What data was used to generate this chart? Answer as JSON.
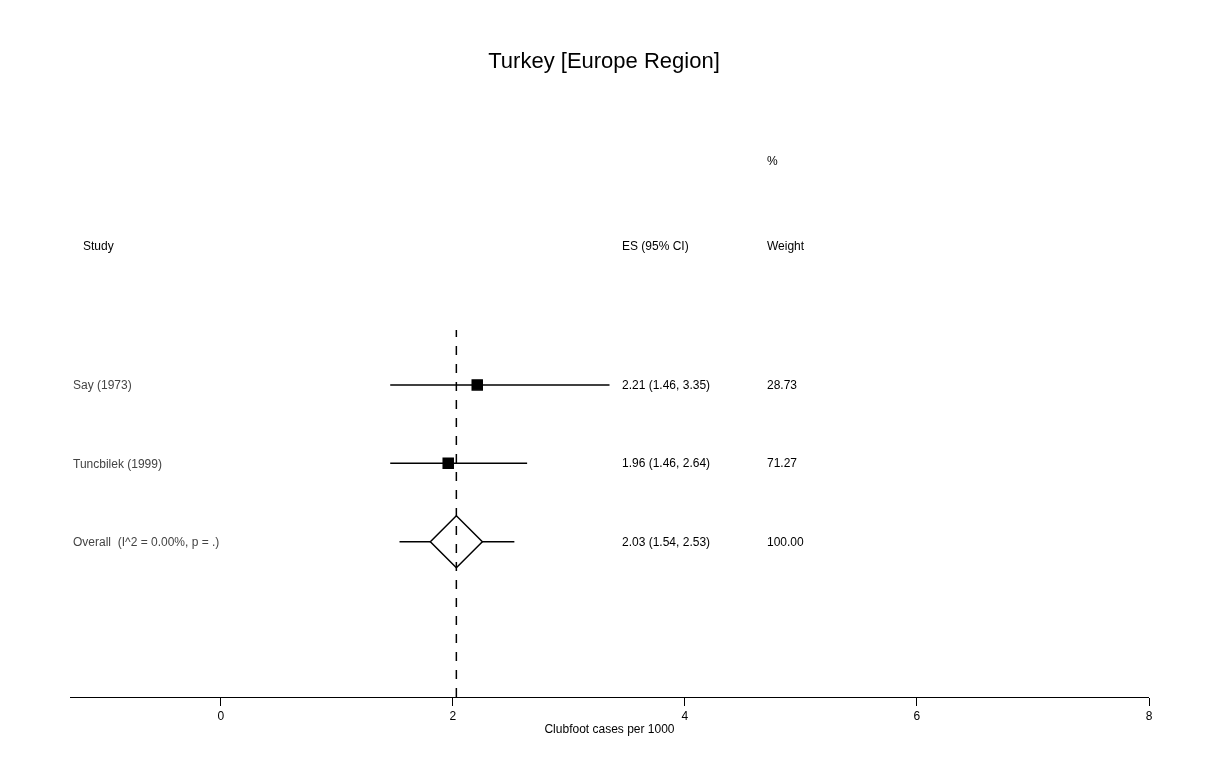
{
  "chart_data": {
    "type": "scatter",
    "title": "Turkey [Europe Region]",
    "xlabel": "Clubfoot cases per 1000",
    "categories": [
      "Say (1973)",
      "Tuncbilek (1999)",
      "Overall  (I^2 = 0.00%, p = .)"
    ],
    "series": [
      {
        "marker": "square",
        "color": "#000000",
        "values": [
          2.21,
          1.96,
          null
        ],
        "errors": [
          [
            1.46,
            3.35
          ],
          [
            1.46,
            2.64
          ],
          null
        ]
      },
      {
        "marker": "diamond",
        "color": "#000000",
        "values": [
          null,
          null,
          2.03
        ],
        "errors": [
          null,
          null,
          [
            1.54,
            2.53
          ]
        ]
      }
    ],
    "xlim": [
      -1.3,
      8
    ],
    "xticks": [
      0,
      2,
      4,
      6,
      8
    ],
    "ref_lines": [
      {
        "axis": "x",
        "value": 2.03,
        "color": "#000000",
        "line_style": "dashed"
      }
    ],
    "annotations": [
      "Study",
      "ES (95% CI)",
      "%",
      "Weight",
      "2.21 (1.46, 3.35)",
      "28.73",
      "1.96 (1.46, 2.64)",
      "71.27",
      "2.03 (1.54, 2.53)",
      "100.00"
    ],
    "orientation": "horizontal"
  }
}
